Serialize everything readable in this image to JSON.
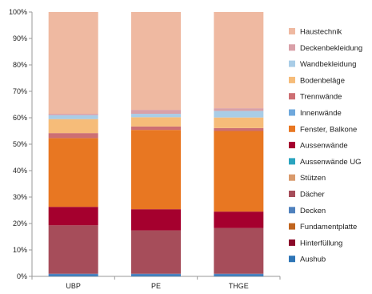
{
  "chart_data": {
    "type": "bar",
    "stacked": true,
    "normalized": true,
    "categories": [
      "UBP",
      "PE",
      "THGE"
    ],
    "y_ticks": [
      "0%",
      "10%",
      "20%",
      "30%",
      "40%",
      "50%",
      "60%",
      "70%",
      "80%",
      "90%",
      "100%"
    ],
    "ylim": [
      0,
      100
    ],
    "grid": false,
    "legend_position": "right",
    "series": [
      {
        "name": "Aushub",
        "color": "#2E75B6",
        "values": [
          0.5,
          0.5,
          0.5
        ]
      },
      {
        "name": "Hinterfüllung",
        "color": "#8B0A2A",
        "values": [
          0.0,
          0.0,
          0.0
        ]
      },
      {
        "name": "Fundamentplatte",
        "color": "#C0641E",
        "values": [
          0.0,
          0.0,
          0.0
        ]
      },
      {
        "name": "Decken",
        "color": "#4F81BD",
        "values": [
          0.5,
          0.5,
          0.5
        ]
      },
      {
        "name": "Dächer",
        "color": "#A64D5A",
        "values": [
          18.3,
          16.4,
          17.3
        ]
      },
      {
        "name": "Stützen",
        "color": "#D99A6C",
        "values": [
          0.0,
          0.0,
          0.0
        ]
      },
      {
        "name": "Aussenwände UG",
        "color": "#2AA4BF",
        "values": [
          0.0,
          0.0,
          0.0
        ]
      },
      {
        "name": "Aussenwände",
        "color": "#A5002E",
        "values": [
          7.0,
          8.0,
          6.2
        ]
      },
      {
        "name": "Fenster, Balkone",
        "color": "#E87722",
        "values": [
          26.0,
          30.0,
          30.5
        ]
      },
      {
        "name": "Innenwände",
        "color": "#6FA8DC",
        "values": [
          0.0,
          0.0,
          0.0
        ]
      },
      {
        "name": "Trennwände",
        "color": "#CD6F73",
        "values": [
          1.9,
          1.3,
          1.1
        ]
      },
      {
        "name": "Bodenbeläge",
        "color": "#F6BC79",
        "values": [
          5.3,
          3.5,
          4.0
        ]
      },
      {
        "name": "Wandbekleidung",
        "color": "#A9CDE7",
        "values": [
          1.5,
          1.3,
          2.5
        ]
      },
      {
        "name": "Deckenbekleidung",
        "color": "#D9A0A8",
        "values": [
          0.5,
          1.5,
          1.0
        ]
      },
      {
        "name": "Haustechnik",
        "color": "#EFB9A1",
        "values": [
          38.5,
          37.0,
          36.4
        ]
      }
    ]
  }
}
